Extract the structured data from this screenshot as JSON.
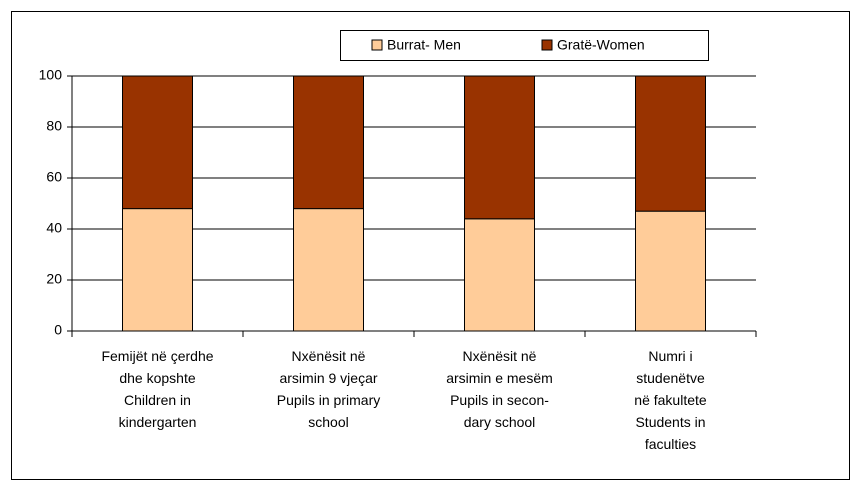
{
  "chart_data": {
    "type": "stacked_bar",
    "categories": [
      "Femijët në çerdhe\ndhe kopshte\nChildren in\nkindergarten",
      "Nxënësit në\narsimin 9 vjeçar\nPupils in primary\nschool",
      "Nxënësit në\narsimin e mesëm\nPupils in secon-\ndary school",
      "Numri i\nstudenëtve\nnë fakultete\nStudents in\nfaculties"
    ],
    "series": [
      {
        "name": "Burrat- Men",
        "color": "#FFCC99",
        "values": [
          48,
          48,
          44,
          47
        ]
      },
      {
        "name": "Gratë-Women",
        "color": "#993300",
        "values": [
          52,
          52,
          56,
          53
        ]
      }
    ],
    "ylim": [
      0,
      100
    ],
    "yticks": [
      0,
      20,
      40,
      60,
      80,
      100
    ],
    "grid": true,
    "legend": "top"
  }
}
